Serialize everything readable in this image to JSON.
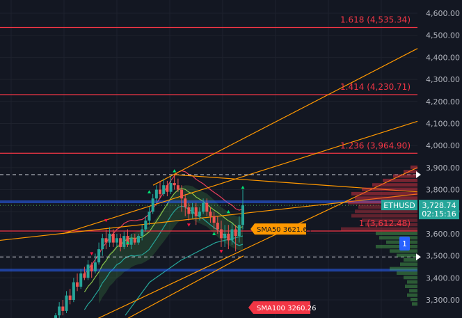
{
  "chart_data": {
    "type": "candlestick",
    "symbol": "ETHUSD",
    "last_price": "3,728.74",
    "countdown": "02:15:16",
    "ylim": [
      3220,
      4680
    ],
    "y_ticks": [
      "4,600.00",
      "4,500.00",
      "4,400.00",
      "4,300.00",
      "4,200.00",
      "4,100.00",
      "4,000.00",
      "3,900.00",
      "3,800.00",
      "3,700.00",
      "3,600.00",
      "3,500.00",
      "3,400.00",
      "3,300.00"
    ],
    "y_tick_values": [
      4600,
      4500,
      4400,
      4300,
      4200,
      4100,
      4000,
      3900,
      3800,
      3700,
      3600,
      3500,
      3400,
      3300
    ],
    "fib_levels": [
      {
        "label": "1.618 (4,535.34)",
        "value": 4535.34
      },
      {
        "label": "1.414 (4,230.71)",
        "value": 4230.71
      },
      {
        "label": "1.236 (3,964.90)",
        "value": 3964.9
      },
      {
        "label": "1 (3,612.48)",
        "value": 3612.48
      }
    ],
    "sma50": {
      "label": "SMA50 3621.64",
      "value": 3621.64
    },
    "sma100": {
      "label": "SMA100 3260.26",
      "value": 3260.26
    },
    "dashed_levels": [
      3868,
      3495
    ],
    "blue_levels": [
      3745,
      3435
    ],
    "alert_badge": "1",
    "candles": [
      [
        3180,
        3230,
        3160,
        3240
      ],
      [
        3230,
        3270,
        3210,
        3290
      ],
      [
        3270,
        3250,
        3230,
        3300
      ],
      [
        3250,
        3320,
        3240,
        3340
      ],
      [
        3320,
        3300,
        3280,
        3350
      ],
      [
        3300,
        3380,
        3290,
        3400
      ],
      [
        3380,
        3360,
        3340,
        3420
      ],
      [
        3360,
        3420,
        3350,
        3440
      ],
      [
        3420,
        3400,
        3390,
        3450
      ],
      [
        3400,
        3460,
        3390,
        3480
      ],
      [
        3460,
        3430,
        3400,
        3470
      ],
      [
        3430,
        3470,
        3420,
        3510
      ],
      [
        3470,
        3530,
        3460,
        3560
      ],
      [
        3530,
        3580,
        3500,
        3600
      ],
      [
        3580,
        3560,
        3530,
        3620
      ],
      [
        3560,
        3600,
        3540,
        3630
      ],
      [
        3600,
        3560,
        3540,
        3620
      ],
      [
        3560,
        3580,
        3540,
        3600
      ],
      [
        3580,
        3540,
        3520,
        3600
      ],
      [
        3540,
        3590,
        3530,
        3610
      ],
      [
        3590,
        3550,
        3540,
        3620
      ],
      [
        3550,
        3580,
        3530,
        3600
      ],
      [
        3580,
        3560,
        3550,
        3600
      ],
      [
        3560,
        3590,
        3550,
        3600
      ],
      [
        3590,
        3620,
        3570,
        3640
      ],
      [
        3620,
        3660,
        3610,
        3680
      ],
      [
        3660,
        3700,
        3640,
        3720
      ],
      [
        3700,
        3760,
        3690,
        3780
      ],
      [
        3760,
        3800,
        3740,
        3820
      ],
      [
        3800,
        3780,
        3760,
        3840
      ],
      [
        3780,
        3820,
        3770,
        3850
      ],
      [
        3820,
        3790,
        3770,
        3840
      ],
      [
        3790,
        3830,
        3780,
        3860
      ],
      [
        3830,
        3820,
        3800,
        3868
      ],
      [
        3820,
        3800,
        3790,
        3850
      ],
      [
        3800,
        3760,
        3700,
        3820
      ],
      [
        3760,
        3720,
        3680,
        3780
      ],
      [
        3720,
        3690,
        3660,
        3740
      ],
      [
        3690,
        3720,
        3670,
        3740
      ],
      [
        3720,
        3680,
        3640,
        3740
      ],
      [
        3680,
        3700,
        3660,
        3720
      ],
      [
        3700,
        3740,
        3690,
        3760
      ],
      [
        3740,
        3700,
        3680,
        3760
      ],
      [
        3700,
        3680,
        3650,
        3720
      ],
      [
        3680,
        3650,
        3620,
        3700
      ],
      [
        3650,
        3620,
        3600,
        3680
      ],
      [
        3620,
        3580,
        3540,
        3660
      ],
      [
        3580,
        3600,
        3540,
        3640
      ],
      [
        3600,
        3570,
        3530,
        3640
      ],
      [
        3570,
        3620,
        3550,
        3650
      ],
      [
        3620,
        3590,
        3520,
        3640
      ],
      [
        3590,
        3640,
        3560,
        3680
      ],
      [
        3640,
        3729,
        3620,
        3800
      ]
    ]
  }
}
